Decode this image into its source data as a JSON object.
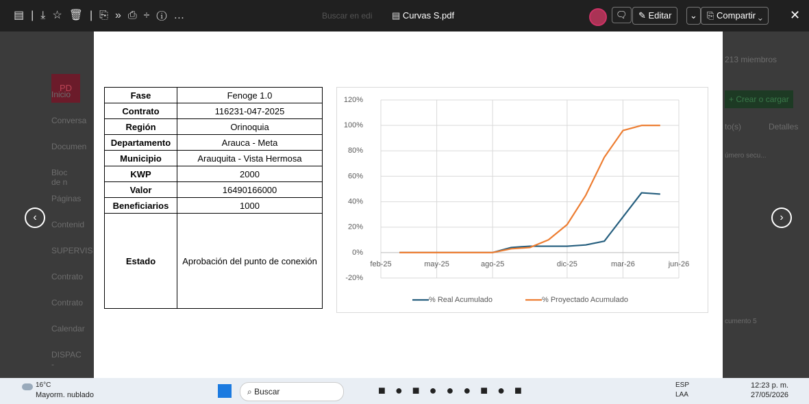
{
  "toolbar": {
    "search": "Buscar en edi",
    "file_name": "Curvas S.pdf",
    "edit": "Editar",
    "share": "Compartir"
  },
  "background": {
    "sidebar": [
      "Inicio",
      "Conversa",
      "Documen",
      "Bloc de n",
      "Páginas",
      "Contenid",
      "SUPERVIS",
      "Contrato",
      "Contrato",
      "Calendar",
      "DISPAC -"
    ],
    "members": "213 miembros",
    "create": "+ Crear o cargar",
    "details": "Detalles",
    "views": "to(s)",
    "column": "úmero secu...",
    "doc": "cumento 5",
    "avatar": "PD"
  },
  "table": {
    "rows": [
      [
        "Fase",
        "Fenoge 1.0"
      ],
      [
        "Contrato",
        "116231-047-2025"
      ],
      [
        "Región",
        "Orinoquia"
      ],
      [
        "Departamento",
        "Arauca - Meta"
      ],
      [
        "Municipio",
        "Arauquita - Vista Hermosa"
      ],
      [
        "KWP",
        "2000"
      ],
      [
        "Valor",
        "16490166000"
      ],
      [
        "Beneficiarios",
        "1000"
      ],
      [
        "Estado",
        "Aprobación del punto de conexión"
      ]
    ]
  },
  "chart_data": {
    "type": "line",
    "categories": [
      "feb-25",
      null,
      null,
      "may-25",
      null,
      null,
      "ago-25",
      null,
      null,
      null,
      "dic-25",
      null,
      null,
      "mar-26",
      null,
      null,
      "jun-26"
    ],
    "series": [
      {
        "name": "% Real Acumulado",
        "color": "#255e7e",
        "values": [
          null,
          0,
          0,
          0,
          0,
          0,
          0,
          4,
          5,
          5,
          5,
          6,
          9,
          28,
          47,
          46,
          null
        ]
      },
      {
        "name": "% Proyectado Acumulado",
        "color": "#ed7d31",
        "values": [
          null,
          0,
          0,
          0,
          0,
          0,
          0,
          3,
          4,
          10,
          22,
          45,
          75,
          96,
          100,
          100,
          null
        ]
      }
    ],
    "ylim": [
      -20,
      120
    ],
    "yticks": [
      {
        "value": -20,
        "label": "-20%"
      },
      {
        "value": 0,
        "label": "0%"
      },
      {
        "value": 20,
        "label": "20%"
      },
      {
        "value": 40,
        "label": "40%"
      },
      {
        "value": 60,
        "label": "60%"
      },
      {
        "value": 80,
        "label": "80%"
      },
      {
        "value": 100,
        "label": "100%"
      },
      {
        "value": 120,
        "label": "120%"
      }
    ],
    "grid": true,
    "legend": "bottom"
  },
  "taskbar": {
    "temp": "16°C",
    "weather": "Mayorm. nublado",
    "search": "Buscar",
    "lang": "ESP",
    "layout": "LAA",
    "time": "12:23 p. m.",
    "date": "27/05/2026"
  }
}
